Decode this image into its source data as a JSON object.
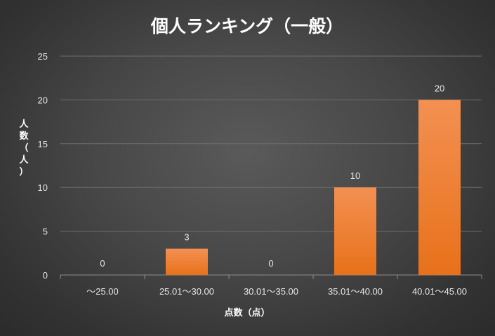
{
  "chart_data": {
    "type": "bar",
    "title": "個人ランキング（一般）",
    "xlabel": "点数（点）",
    "ylabel": "人数（人）",
    "categories": [
      "～25.00",
      "25.01～30.00",
      "30.01～35.00",
      "35.01～40.00",
      "40.01～45.00"
    ],
    "values": [
      0,
      3,
      0,
      10,
      20
    ],
    "data_labels": [
      "0",
      "3",
      "0",
      "10",
      "20"
    ],
    "ylim": [
      0,
      25
    ],
    "yticks": [
      0,
      5,
      10,
      15,
      20,
      25
    ],
    "ytick_labels": [
      "0",
      "5",
      "10",
      "15",
      "20",
      "25"
    ],
    "grid": true,
    "legend": "none",
    "bar_color_top": "#f39052",
    "bar_color_bottom": "#e8711a"
  }
}
